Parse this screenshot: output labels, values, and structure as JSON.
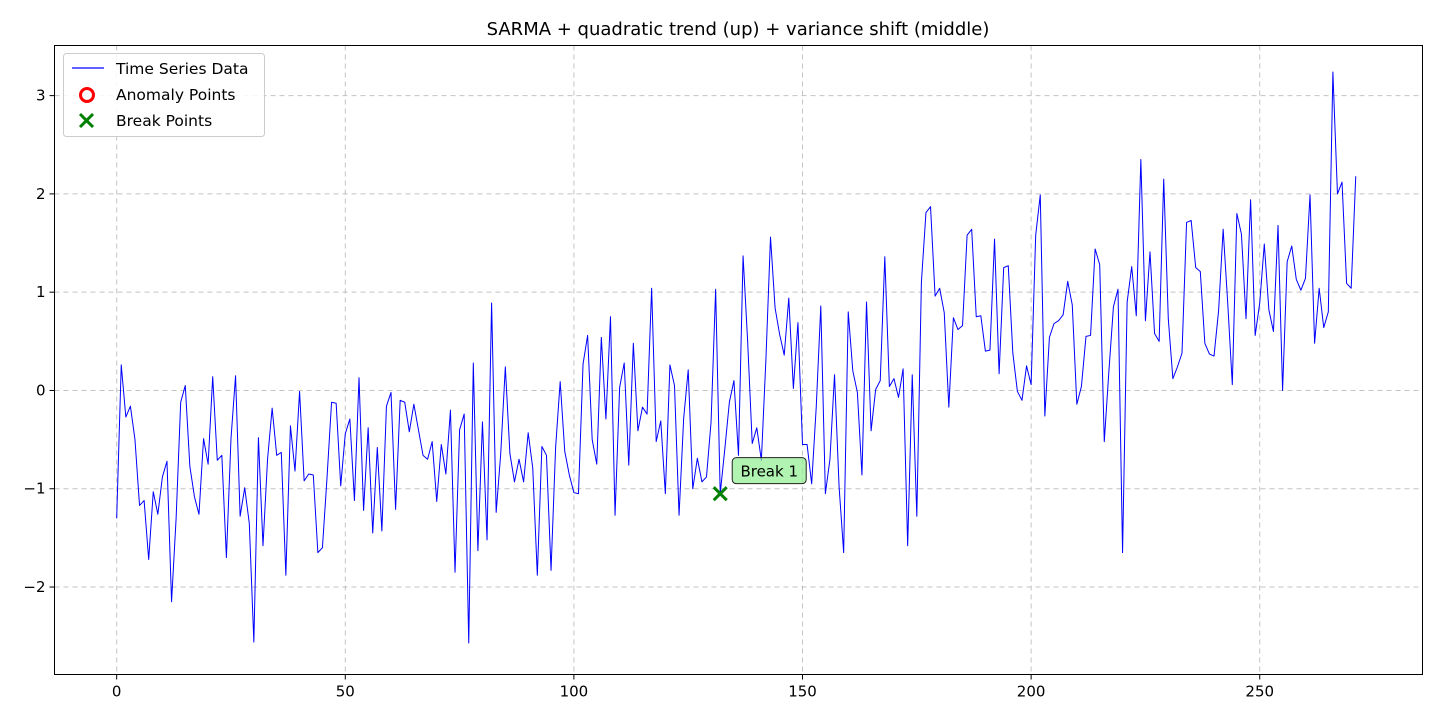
{
  "chart_data": {
    "type": "line",
    "title": "SARMA + quadratic trend (up) + variance shift (middle)",
    "xlabel": "",
    "ylabel": "",
    "xlim": [
      -13.6,
      285.6
    ],
    "ylim": [
      -2.89,
      3.51
    ],
    "xticks": [
      0,
      50,
      100,
      150,
      200,
      250
    ],
    "yticks": [
      -2,
      -1,
      0,
      1,
      2,
      3
    ],
    "ytick_labels": [
      "−2",
      "−1",
      "0",
      "1",
      "2",
      "3"
    ],
    "grid": true,
    "legend_position": "top-left",
    "series": [
      {
        "name": "Time Series Data",
        "color": "#0000ff",
        "values": [
          -1.3,
          0.26,
          -0.27,
          -0.16,
          -0.5,
          -1.17,
          -1.12,
          -1.72,
          -1.03,
          -1.26,
          -0.88,
          -0.72,
          -2.15,
          -1.3,
          -0.12,
          0.05,
          -0.77,
          -1.08,
          -1.26,
          -0.49,
          -0.75,
          0.14,
          -0.71,
          -0.66,
          -1.7,
          -0.49,
          0.15,
          -1.28,
          -0.99,
          -1.35,
          -2.56,
          -0.48,
          -1.58,
          -0.7,
          -0.18,
          -0.66,
          -0.63,
          -1.88,
          -0.36,
          -0.82,
          -0.01,
          -0.92,
          -0.85,
          -0.86,
          -1.65,
          -1.6,
          -0.89,
          -0.12,
          -0.13,
          -0.97,
          -0.44,
          -0.29,
          -1.12,
          0.13,
          -1.22,
          -0.38,
          -1.45,
          -0.58,
          -1.43,
          -0.16,
          -0.02,
          -1.21,
          -0.1,
          -0.12,
          -0.42,
          -0.14,
          -0.4,
          -0.66,
          -0.7,
          -0.52,
          -1.13,
          -0.55,
          -0.85,
          -0.2,
          -1.85,
          -0.4,
          -0.24,
          -2.57,
          0.28,
          -1.63,
          -0.32,
          -1.52,
          0.89,
          -1.24,
          -0.64,
          0.24,
          -0.64,
          -0.93,
          -0.7,
          -0.93,
          -0.43,
          -0.79,
          -1.88,
          -0.57,
          -0.66,
          -1.83,
          -0.58,
          0.09,
          -0.62,
          -0.86,
          -1.04,
          -1.05,
          0.27,
          0.56,
          -0.5,
          -0.75,
          0.54,
          -0.29,
          0.75,
          -1.27,
          0.03,
          0.28,
          -0.76,
          0.48,
          -0.41,
          -0.17,
          -0.24,
          1.04,
          -0.52,
          -0.31,
          -1.05,
          0.26,
          0.05,
          -1.27,
          -0.29,
          0.21,
          -1.0,
          -0.69,
          -0.93,
          -0.88,
          -0.32,
          1.03,
          -1.05,
          -0.6,
          -0.12,
          0.1,
          -0.66,
          1.37,
          0.5,
          -0.54,
          -0.38,
          -0.71,
          0.32,
          1.56,
          0.84,
          0.57,
          0.36,
          0.94,
          0.02,
          0.69,
          -0.55,
          -0.55,
          -0.95,
          -0.17,
          0.86,
          -1.05,
          -0.7,
          0.16,
          -0.98,
          -1.65,
          0.8,
          0.2,
          -0.02,
          -0.86,
          0.9,
          -0.41,
          0.01,
          0.1,
          1.36,
          0.04,
          0.12,
          -0.07,
          0.22,
          -1.58,
          0.16,
          -1.28,
          1.1,
          1.81,
          1.87,
          0.96,
          1.04,
          0.79,
          -0.17,
          0.74,
          0.62,
          0.66,
          1.58,
          1.64,
          0.75,
          0.76,
          0.4,
          0.41,
          1.54,
          0.17,
          1.25,
          1.27,
          0.38,
          -0.01,
          -0.1,
          0.25,
          0.06,
          1.58,
          1.99,
          -0.26,
          0.54,
          0.68,
          0.71,
          0.77,
          1.11,
          0.87,
          -0.14,
          0.04,
          0.55,
          0.56,
          1.44,
          1.28,
          -0.52,
          0.19,
          0.85,
          1.03,
          -1.65,
          0.9,
          1.26,
          0.76,
          2.35,
          0.71,
          1.41,
          0.58,
          0.5,
          2.15,
          0.73,
          0.12,
          0.24,
          0.38,
          1.71,
          1.73,
          1.25,
          1.21,
          0.48,
          0.37,
          0.35,
          0.81,
          1.64,
          0.89,
          0.06,
          1.8,
          1.59,
          0.73,
          1.94,
          0.56,
          0.89,
          1.49,
          0.82,
          0.6,
          1.68,
          0.0,
          1.31,
          1.47,
          1.13,
          1.02,
          1.14,
          1.99,
          0.48,
          1.04,
          0.64,
          0.8,
          3.24,
          2.0,
          2.12,
          1.09,
          1.04,
          2.18
        ]
      }
    ],
    "anomaly_points": {
      "name": "Anomaly Points",
      "color": "#ff0000",
      "points": []
    },
    "break_points": {
      "name": "Break Points",
      "color": "#008000",
      "points": [
        {
          "x": 132,
          "y": -1.05,
          "label": "Break 1"
        }
      ]
    }
  }
}
